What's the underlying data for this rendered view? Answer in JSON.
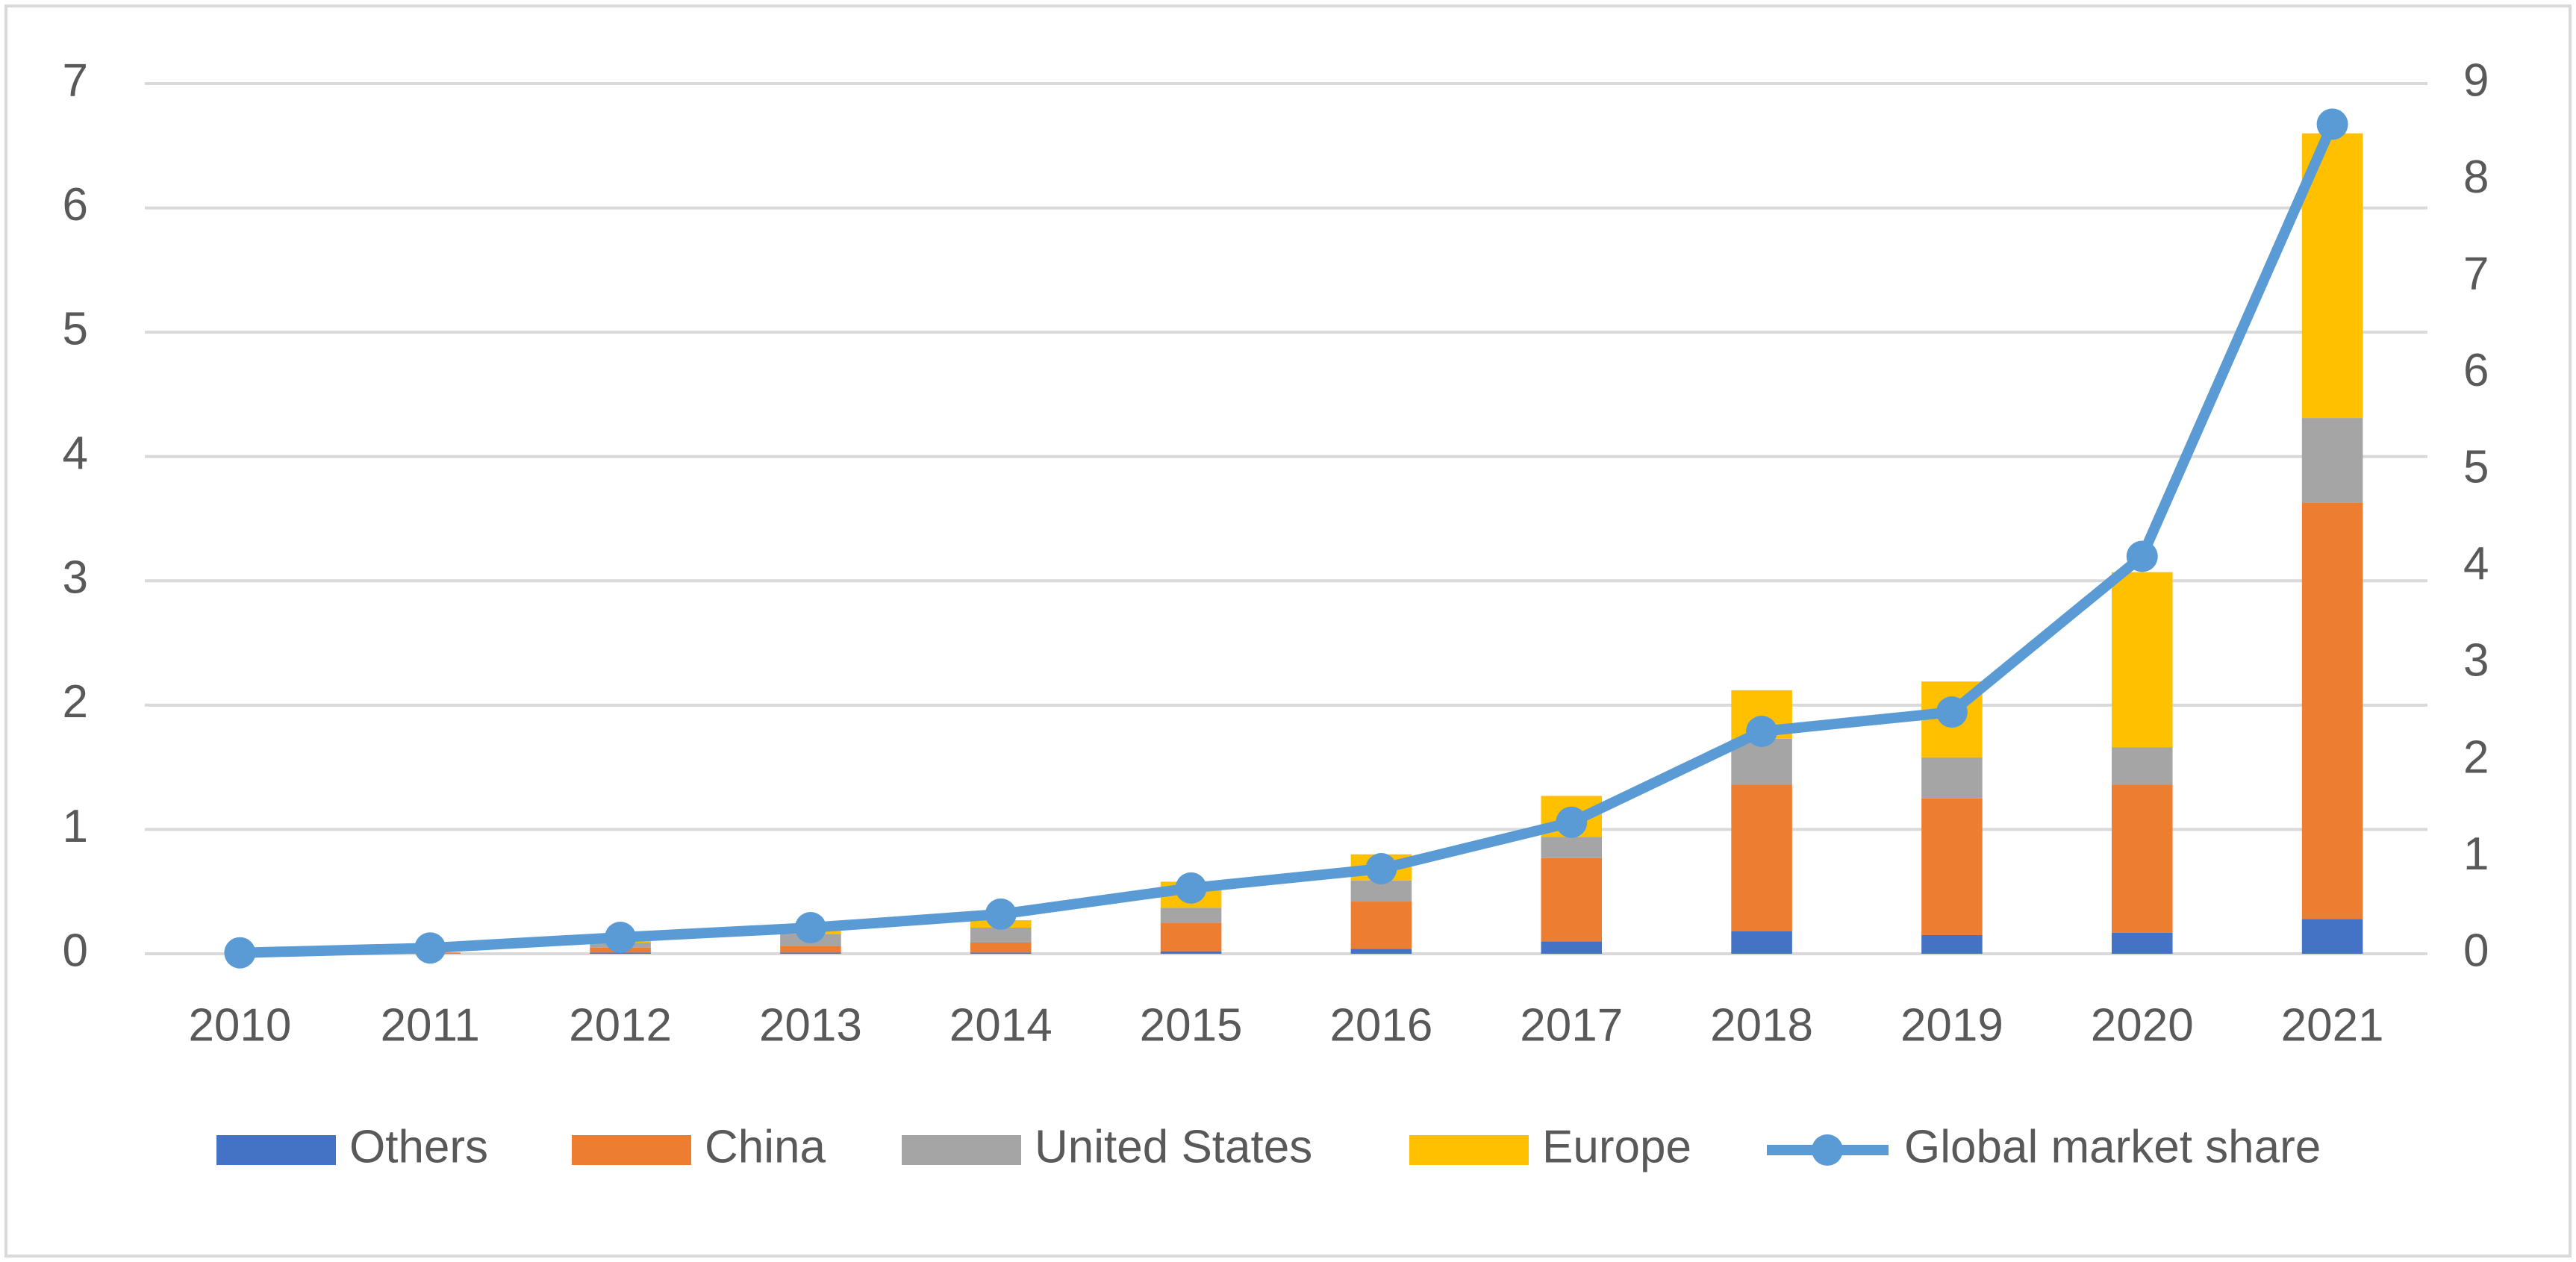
{
  "chart_data": {
    "type": "bar",
    "stacked": true,
    "categories": [
      "2010",
      "2011",
      "2012",
      "2013",
      "2014",
      "2015",
      "2016",
      "2017",
      "2018",
      "2019",
      "2020",
      "2021"
    ],
    "series": [
      {
        "name": "Others",
        "color": "#4472c4",
        "values": [
          0,
          0,
          0.01,
          0.01,
          0.01,
          0.02,
          0.04,
          0.1,
          0.18,
          0.15,
          0.17,
          0.28
        ]
      },
      {
        "name": "China",
        "color": "#ed7d31",
        "values": [
          0,
          0.01,
          0.04,
          0.05,
          0.08,
          0.23,
          0.38,
          0.67,
          1.18,
          1.1,
          1.19,
          3.35
        ]
      },
      {
        "name": "United States",
        "color": "#a5a5a5",
        "values": [
          0,
          0,
          0.04,
          0.1,
          0.12,
          0.12,
          0.17,
          0.17,
          0.37,
          0.33,
          0.3,
          0.68
        ]
      },
      {
        "name": "Europe",
        "color": "#ffc000",
        "values": [
          0,
          0,
          0.02,
          0.04,
          0.06,
          0.21,
          0.21,
          0.33,
          0.39,
          0.61,
          1.41,
          2.29
        ]
      },
      {
        "name": "Global market share",
        "color": "#5b9bd5",
        "type": "line",
        "axis": "y2",
        "values": [
          0.01,
          0.06,
          0.17,
          0.27,
          0.41,
          0.68,
          0.88,
          1.36,
          2.3,
          2.5,
          4.11,
          8.58
        ]
      }
    ],
    "ylim": [
      0,
      7
    ],
    "yticks": [
      0,
      1,
      2,
      3,
      4,
      5,
      6,
      7
    ],
    "y2lim": [
      0,
      9
    ],
    "y2ticks": [
      0,
      1,
      2,
      3,
      4,
      5,
      6,
      7,
      8,
      9
    ],
    "grid": true,
    "legend": "bottom"
  }
}
